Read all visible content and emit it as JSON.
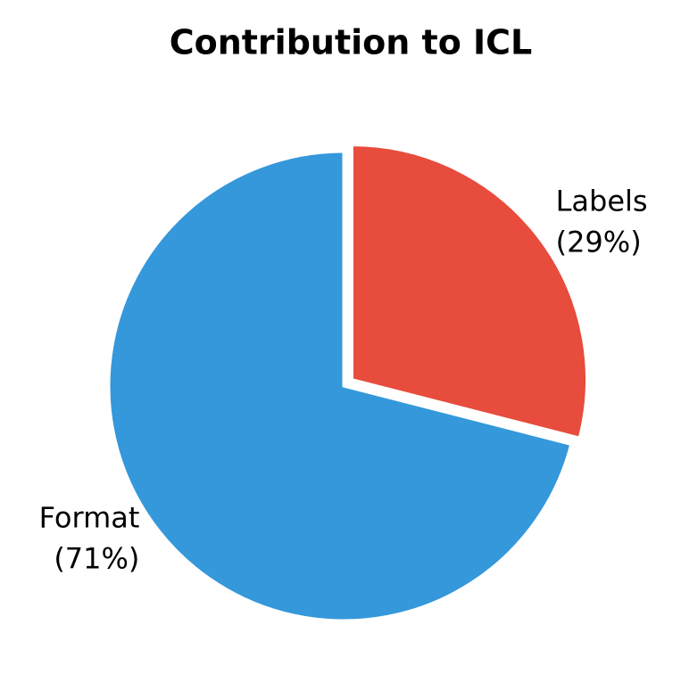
{
  "chart_data": {
    "type": "pie",
    "title": "Contribution to ICL",
    "categories": [
      "Labels",
      "Format"
    ],
    "values": [
      29,
      71
    ],
    "value_labels": [
      "(29%)",
      "(71%)"
    ],
    "colors": [
      "#e74c3c",
      "#3498db"
    ],
    "explode": [
      true,
      false
    ]
  }
}
